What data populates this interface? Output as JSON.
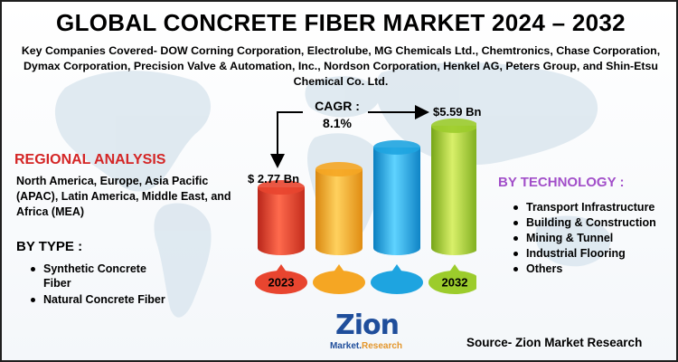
{
  "title": "GLOBAL CONCRETE FIBER MARKET 2024 – 2032",
  "companies_line": "Key Companies Covered- DOW Corning Corporation, Electrolube, MG Chemicals Ltd., Chemtronics, Chase Corporation, Dymax Corporation, Precision Valve & Automation, Inc., Nordson Corporation, Henkel AG, Peters Group, and Shin-Etsu Chemical Co. Ltd.",
  "cagr": {
    "label": "CAGR :",
    "value": "8.1%"
  },
  "start_value": "$ 2.77 Bn",
  "end_value": "$5.59 Bn",
  "regional": {
    "heading": "REGIONAL ANALYSIS",
    "text": "North America, Europe, Asia Pacific (APAC), Latin America, Middle East, and Africa (MEA)"
  },
  "by_type": {
    "heading": "BY TYPE :",
    "items": [
      "Synthetic Concrete Fiber",
      "Natural Concrete Fiber"
    ]
  },
  "by_technology": {
    "heading": "BY TECHNOLOGY :",
    "items": [
      "Transport Infrastructure",
      "Building & Construction",
      "Mining & Tunnel",
      "Industrial Flooring",
      "Others"
    ]
  },
  "source": "Source- Zion Market Research",
  "logo": {
    "main": "Zion",
    "sub_left": "Market.",
    "sub_right": "Research"
  },
  "colors": {
    "title": "#000000",
    "regional_heading": "#d42626",
    "technology_heading": "#a24fc9",
    "bar_1": "#e8452f",
    "bar_2": "#f5a623",
    "bar_3": "#1ea4e0",
    "bar_4": "#9ccc2c",
    "logo": "#1f4e9b"
  },
  "chart_data": {
    "type": "bar",
    "categories": [
      "2023",
      "",
      "",
      "2032"
    ],
    "values": [
      2.77,
      3.6,
      4.6,
      5.59
    ],
    "labels_shown": [
      "$ 2.77 Bn",
      "",
      "",
      "$5.59 Bn"
    ],
    "ylim": [
      0,
      6
    ],
    "title": "",
    "xlabel": "",
    "ylabel": "",
    "grid": false
  }
}
